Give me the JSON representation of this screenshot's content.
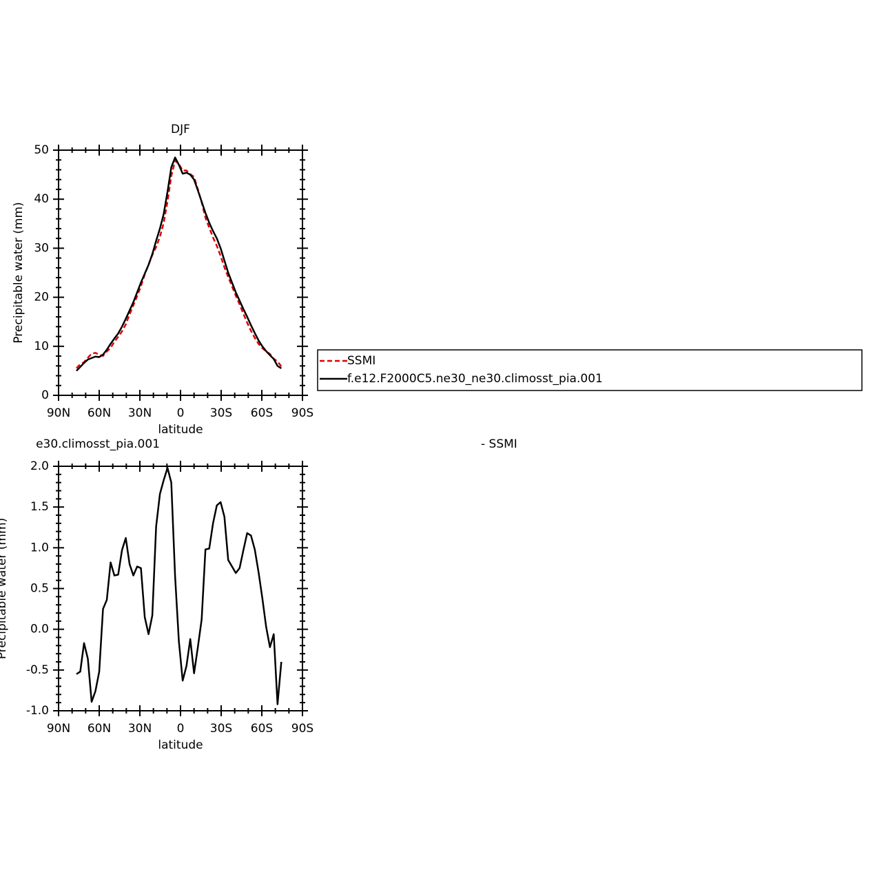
{
  "chart_data": [
    {
      "type": "line",
      "title": "DJF",
      "xlabel": "latitude",
      "ylabel": "Precipitable water (mm)",
      "x": [
        76.8,
        74.0,
        71.2,
        68.4,
        65.6,
        62.8,
        60.0,
        57.2,
        54.4,
        51.6,
        48.8,
        46.0,
        43.2,
        40.4,
        37.6,
        34.8,
        32.0,
        29.2,
        26.4,
        23.6,
        20.8,
        18.0,
        15.2,
        12.4,
        9.6,
        6.8,
        4.0,
        1.2,
        -1.6,
        -4.4,
        -7.2,
        -10.0,
        -12.8,
        -15.6,
        -18.4,
        -21.2,
        -24.0,
        -26.8,
        -29.6,
        -32.4,
        -35.2,
        -38.0,
        -40.8,
        -43.6,
        -46.4,
        -49.2,
        -52.0,
        -54.8,
        -57.6,
        -60.4,
        -63.2,
        -66.0,
        -68.8,
        -71.6,
        -74.4
      ],
      "xlim": [
        90,
        -90
      ],
      "xticks": [
        {
          "value": 90,
          "label": "90N"
        },
        {
          "value": 60,
          "label": "60N"
        },
        {
          "value": 30,
          "label": "30N"
        },
        0,
        {
          "value": -30,
          "label": "30S"
        },
        {
          "value": -60,
          "label": "60S"
        },
        {
          "value": -90,
          "label": "90S"
        }
      ],
      "ylim": [
        0,
        50
      ],
      "yticks": [
        0,
        10,
        20,
        30,
        40,
        50
      ],
      "legend": "right",
      "series": [
        {
          "name": "SSMI",
          "color": "#dd0000",
          "dashed": true,
          "values": [
            5.55,
            6.32,
            6.77,
            7.66,
            8.49,
            8.66,
            8.32,
            8.05,
            8.94,
            9.68,
            10.94,
            11.93,
            13.03,
            14.48,
            16.5,
            18.34,
            20.23,
            22.25,
            24.65,
            26.66,
            28.63,
            30.24,
            32.34,
            35.17,
            39.52,
            44.7,
            47.85,
            47.15,
            45.83,
            45.85,
            45.12,
            44.54,
            42.02,
            39.38,
            36.22,
            34.21,
            32.2,
            30.48,
            28.44,
            26.12,
            24.15,
            22.23,
            20.31,
            18.55,
            16.63,
            14.82,
            13.15,
            11.72,
            10.5,
            9.62,
            8.97,
            8.42,
            7.46,
            6.92,
            5.9
          ]
        },
        {
          "name": "f.e12.F2000C5.ne30_ne30.climosst_pia.001",
          "color": "#000000",
          "dashed": false,
          "values": [
            5.0,
            5.8,
            6.6,
            7.3,
            7.6,
            7.9,
            7.8,
            8.3,
            9.3,
            10.5,
            11.6,
            12.6,
            14.0,
            15.6,
            17.3,
            19.0,
            21.0,
            23.0,
            24.8,
            26.6,
            28.8,
            31.5,
            34.0,
            37.0,
            41.5,
            46.5,
            48.5,
            47.0,
            45.2,
            45.4,
            45.0,
            44.0,
            41.8,
            39.5,
            37.2,
            35.2,
            33.5,
            32.0,
            30.0,
            27.5,
            25.0,
            23.0,
            21.0,
            19.3,
            17.6,
            16.0,
            14.3,
            12.7,
            11.2,
            10.0,
            9.0,
            8.2,
            7.4,
            6.0,
            5.5
          ]
        }
      ]
    },
    {
      "type": "line",
      "title": "e30.climosst_pia.001",
      "right_title": "- SSMI",
      "xlabel": "latitude",
      "ylabel": "Precipitable water (mm)",
      "x": [
        76.8,
        74.0,
        71.2,
        68.4,
        65.6,
        62.8,
        60.0,
        57.2,
        54.4,
        51.6,
        48.8,
        46.0,
        43.2,
        40.4,
        37.6,
        34.8,
        32.0,
        29.2,
        26.4,
        23.6,
        20.8,
        18.0,
        15.2,
        12.4,
        9.6,
        6.8,
        4.0,
        1.2,
        -1.6,
        -4.4,
        -7.2,
        -10.0,
        -12.8,
        -15.6,
        -18.4,
        -21.2,
        -24.0,
        -26.8,
        -29.6,
        -32.4,
        -35.2,
        -38.0,
        -40.8,
        -43.6,
        -46.4,
        -49.2,
        -52.0,
        -54.8,
        -57.6,
        -60.4,
        -63.2,
        -66.0,
        -68.8,
        -71.6,
        -74.4
      ],
      "xlim": [
        90,
        -90
      ],
      "xticks": [
        {
          "value": 90,
          "label": "90N"
        },
        {
          "value": 60,
          "label": "60N"
        },
        {
          "value": 30,
          "label": "30N"
        },
        0,
        {
          "value": -30,
          "label": "30S"
        },
        {
          "value": -60,
          "label": "60S"
        },
        {
          "value": -90,
          "label": "90S"
        }
      ],
      "ylim": [
        -1,
        2
      ],
      "yticks": [
        {
          "value": -1,
          "label": "-1.0"
        },
        -0.5,
        {
          "value": 0,
          "label": "0.0"
        },
        0.5,
        {
          "value": 1,
          "label": "1.0"
        },
        1.5,
        {
          "value": 2,
          "label": "2.0"
        }
      ],
      "series": [
        {
          "color": "#000000",
          "dashed": false,
          "values": [
            -0.55,
            -0.52,
            -0.17,
            -0.36,
            -0.89,
            -0.76,
            -0.52,
            0.25,
            0.36,
            0.82,
            0.66,
            0.67,
            0.97,
            1.12,
            0.8,
            0.66,
            0.77,
            0.75,
            0.15,
            -0.06,
            0.17,
            1.26,
            1.66,
            1.83,
            1.98,
            1.8,
            0.65,
            -0.15,
            -0.63,
            -0.45,
            -0.12,
            -0.54,
            -0.22,
            0.12,
            0.98,
            0.99,
            1.3,
            1.52,
            1.56,
            1.38,
            0.85,
            0.77,
            0.69,
            0.75,
            0.97,
            1.18,
            1.15,
            0.98,
            0.7,
            0.38,
            0.03,
            -0.22,
            -0.06,
            -0.92,
            -0.4
          ]
        }
      ]
    }
  ]
}
